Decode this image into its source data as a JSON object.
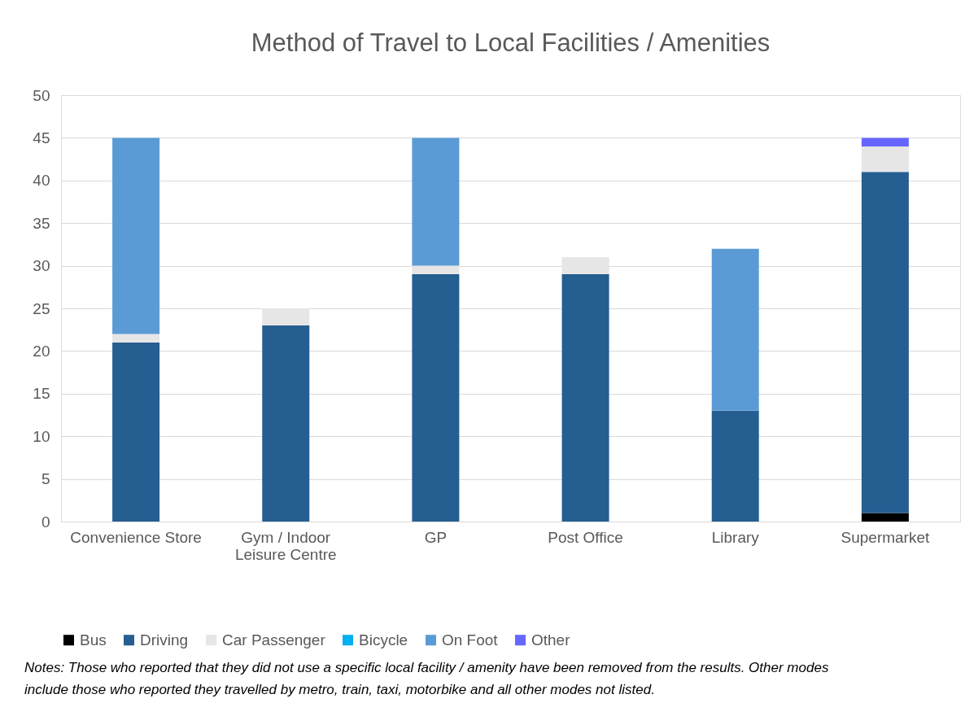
{
  "chart_data": {
    "type": "bar",
    "title": "Method of Travel to Local Facilities / Amenities",
    "stacked": true,
    "categories": [
      "Convenience Store",
      "Gym / Indoor Leisure Centre",
      "GP",
      "Post Office",
      "Library",
      "Supermarket"
    ],
    "series": [
      {
        "name": "Bus",
        "color": "#000000",
        "values": [
          0,
          0,
          0,
          0,
          0,
          1
        ]
      },
      {
        "name": "Driving",
        "color": "#255e91",
        "values": [
          21,
          23,
          29,
          29,
          13,
          40
        ]
      },
      {
        "name": "Car Passenger",
        "color": "#e7e6e6",
        "values": [
          1,
          2,
          1,
          2,
          0,
          3
        ]
      },
      {
        "name": "Bicycle",
        "color": "#00b0f0",
        "values": [
          0,
          0,
          0,
          0,
          0,
          0
        ]
      },
      {
        "name": "On Foot",
        "color": "#5b9bd5",
        "values": [
          23,
          0,
          15,
          0,
          19,
          0
        ]
      },
      {
        "name": "Other",
        "color": "#6666ff",
        "values": [
          0,
          0,
          0,
          0,
          0,
          1
        ]
      }
    ],
    "ylim": [
      0,
      50
    ],
    "yticks": [
      0,
      5,
      10,
      15,
      20,
      25,
      30,
      35,
      40,
      45,
      50
    ],
    "grid": "y",
    "legend": "bottom",
    "annotations": [
      "Notes: Those who reported that they did not use a specific local facility / amenity have been removed from the results. Other modes",
      "include those who reported they travelled by metro, train, taxi, motorbike and all other modes not listed."
    ]
  }
}
